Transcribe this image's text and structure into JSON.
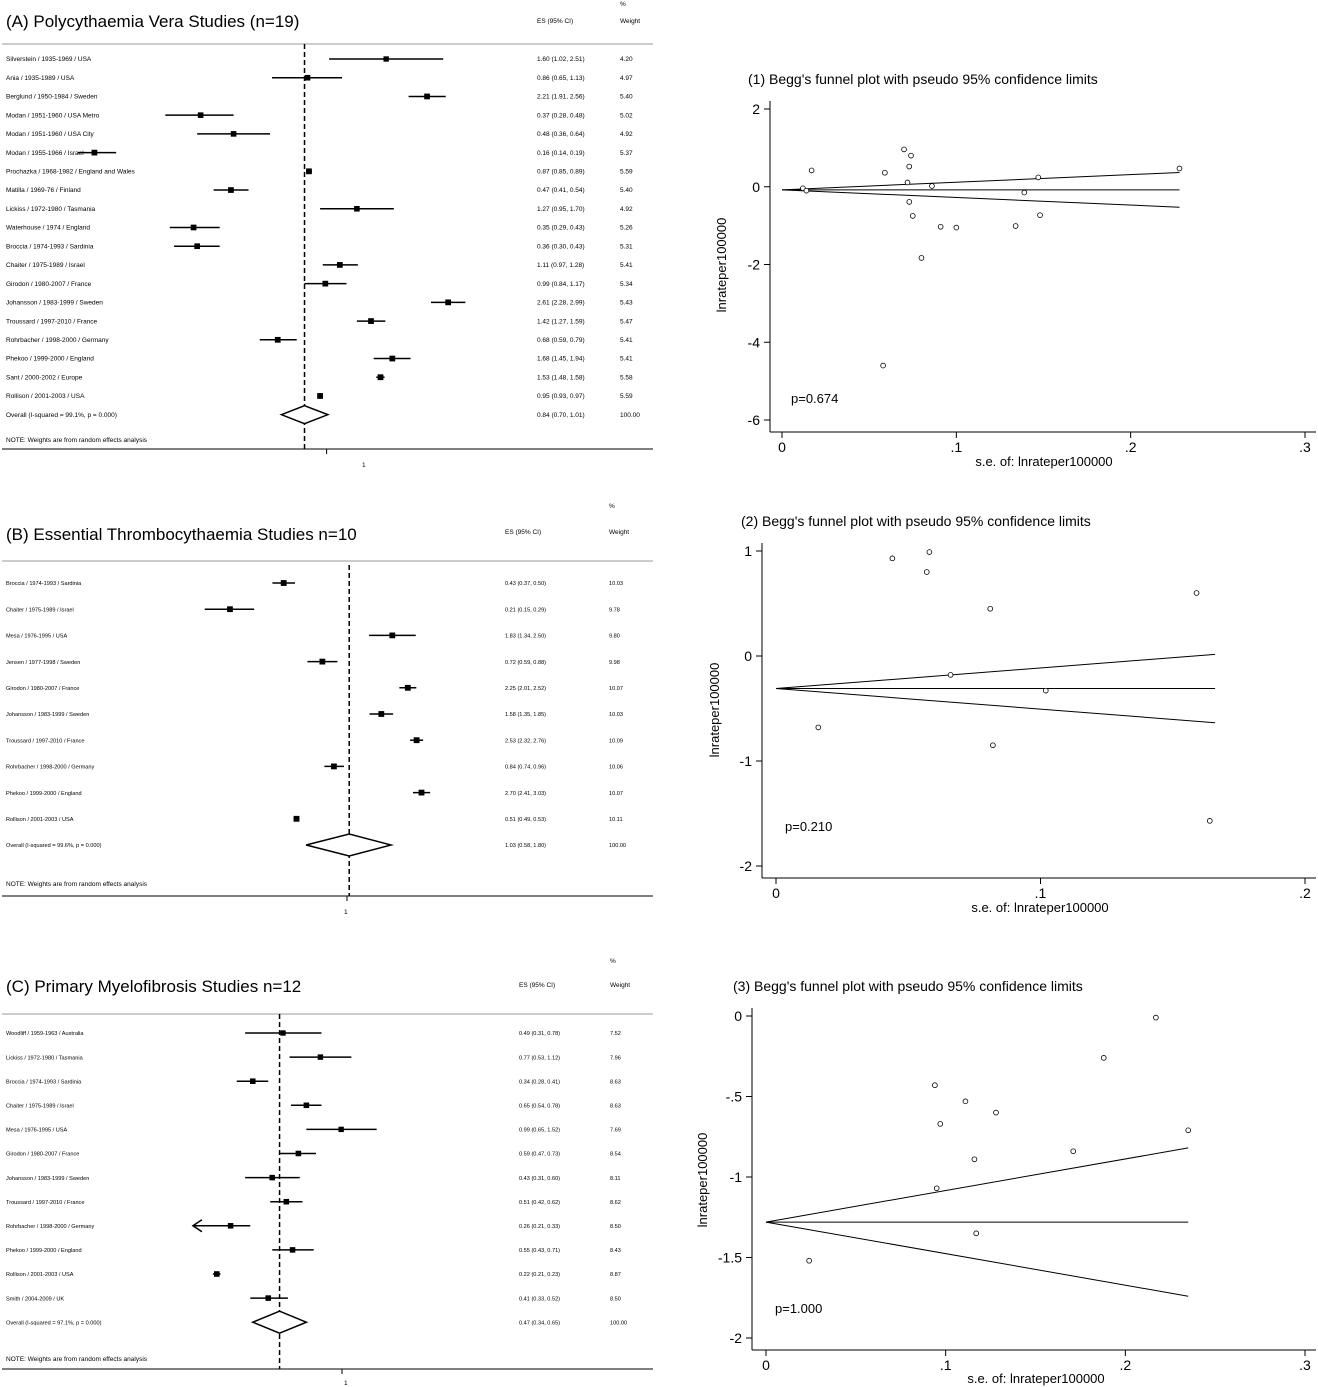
{
  "panels": [
    {
      "title": "(A) Polycythaemia Vera Studies (n=19)",
      "es_header": "ES (95% CI)",
      "weight_header_1": "%",
      "weight_header_2": "Weight",
      "ref_label": "1",
      "note": "NOTE: Weights are from random effects analysis"
    },
    {
      "title": "(B) Essential Thrombocythaemia Studies n=10",
      "es_header": "ES (95% CI)",
      "weight_header_1": "%",
      "weight_header_2": "Weight",
      "ref_label": "1",
      "note": "NOTE: Weights are from random effects analysis"
    },
    {
      "title": "(C) Primary Myelofibrosis Studies n=12",
      "es_header": "ES (95% CI)",
      "weight_header_1": "%",
      "weight_header_2": "Weight",
      "ref_label": "1",
      "note": "NOTE: Weights are from random effects analysis"
    }
  ],
  "funnels": [
    {
      "title": "(1) Begg's funnel plot with pseudo 95% confidence limits",
      "pvalue": "p=0.674",
      "xlabel": "s.e. of: lnrateper100000",
      "ylabel": "lnrateper100000"
    },
    {
      "title": "(2) Begg's funnel plot with pseudo 95% confidence limits",
      "pvalue": "p=0.210",
      "xlabel": "s.e. of: lnrateper100000",
      "ylabel": "lnrateper100000"
    },
    {
      "title": "(3) Begg's funnel plot with pseudo 95% confidence limits",
      "pvalue": "p=1.000",
      "xlabel": "s.e. of: lnrateper100000",
      "ylabel": "lnrateper100000"
    }
  ],
  "chart_data": [
    {
      "type": "forest",
      "title": "(A) Polycythaemia Vera Studies (n=19)",
      "columns": [
        "ES (95% CI)",
        "% Weight"
      ],
      "rows": [
        {
          "label": "Silverstein / 1935-1969 / USA",
          "es": 1.6,
          "lo": 1.02,
          "hi": 2.51,
          "ci_text": "1.60 (1.02, 2.51)",
          "weight": "4.20"
        },
        {
          "label": "Ania / 1935-1989 / USA",
          "es": 0.86,
          "lo": 0.65,
          "hi": 1.13,
          "ci_text": "0.86 (0.65, 1.13)",
          "weight": "4.97"
        },
        {
          "label": "Berglund / 1950-1984 / Sweden",
          "es": 2.21,
          "lo": 1.91,
          "hi": 2.56,
          "ci_text": "2.21 (1.91, 2.56)",
          "weight": "5.40"
        },
        {
          "label": "Modan / 1951-1960 / USA Metro",
          "es": 0.37,
          "lo": 0.28,
          "hi": 0.48,
          "ci_text": "0.37 (0.28, 0.48)",
          "weight": "5.02"
        },
        {
          "label": "Modan / 1951-1960 / USA City",
          "es": 0.48,
          "lo": 0.36,
          "hi": 0.64,
          "ci_text": "0.48 (0.36, 0.64)",
          "weight": "4.92"
        },
        {
          "label": "Modan / 1955-1966 / Israel",
          "es": 0.16,
          "lo": 0.14,
          "hi": 0.19,
          "ci_text": "0.16 (0.14, 0.19)",
          "weight": "5.37"
        },
        {
          "label": "Prochazka / 1968-1982 / England and Wales",
          "es": 0.87,
          "lo": 0.85,
          "hi": 0.89,
          "ci_text": "0.87 (0.85, 0.89)",
          "weight": "5.59"
        },
        {
          "label": "Matilla / 1969-76 / Finland",
          "es": 0.47,
          "lo": 0.41,
          "hi": 0.54,
          "ci_text": "0.47 (0.41, 0.54)",
          "weight": "5.40"
        },
        {
          "label": "Lickiss / 1972-1980 / Tasmania",
          "es": 1.27,
          "lo": 0.95,
          "hi": 1.7,
          "ci_text": "1.27 (0.95, 1.70)",
          "weight": "4.92"
        },
        {
          "label": "Waterhouse / 1974 / England",
          "es": 0.35,
          "lo": 0.29,
          "hi": 0.43,
          "ci_text": "0.35 (0.29, 0.43)",
          "weight": "5.26"
        },
        {
          "label": "Broccia / 1974-1993 / Sardinia",
          "es": 0.36,
          "lo": 0.3,
          "hi": 0.43,
          "ci_text": "0.36 (0.30, 0.43)",
          "weight": "5.31"
        },
        {
          "label": "Chaiter / 1975-1989 / Israel",
          "es": 1.11,
          "lo": 0.97,
          "hi": 1.28,
          "ci_text": "1.11 (0.97, 1.28)",
          "weight": "5.41"
        },
        {
          "label": "Girodon / 1980-2007 / France",
          "es": 0.99,
          "lo": 0.84,
          "hi": 1.17,
          "ci_text": "0.99 (0.84, 1.17)",
          "weight": "5.34"
        },
        {
          "label": "Johansson / 1983-1999 / Sweden",
          "es": 2.61,
          "lo": 2.28,
          "hi": 2.99,
          "ci_text": "2.61 (2.28, 2.99)",
          "weight": "5.43"
        },
        {
          "label": "Troussard / 1997-2010 / France",
          "es": 1.42,
          "lo": 1.27,
          "hi": 1.59,
          "ci_text": "1.42 (1.27, 1.59)",
          "weight": "5.47"
        },
        {
          "label": "Rohrbacher / 1998-2000 / Germany",
          "es": 0.68,
          "lo": 0.59,
          "hi": 0.79,
          "ci_text": "0.68 (0.59, 0.79)",
          "weight": "5.41"
        },
        {
          "label": "Phekoo / 1999-2000 / England",
          "es": 1.68,
          "lo": 1.45,
          "hi": 1.94,
          "ci_text": "1.68 (1.45, 1.94)",
          "weight": "5.41"
        },
        {
          "label": "Sant / 2000-2002 / Europe",
          "es": 1.53,
          "lo": 1.48,
          "hi": 1.58,
          "ci_text": "1.53 (1.48, 1.58)",
          "weight": "5.58"
        },
        {
          "label": "Rollison / 2001-2003 / USA",
          "es": 0.95,
          "lo": 0.93,
          "hi": 0.97,
          "ci_text": "0.95 (0.93, 0.97)",
          "weight": "5.59"
        }
      ],
      "overall": {
        "label": "Overall  (I-squared = 99.1%, p = 0.000)",
        "es": 0.84,
        "lo": 0.7,
        "hi": 1.01,
        "ci_text": "0.84 (0.70, 1.01)",
        "weight": "100.00"
      },
      "ref": 1
    },
    {
      "type": "forest",
      "title": "(B) Essential Thrombocythaemia Studies n=10",
      "columns": [
        "ES (95% CI)",
        "% Weight"
      ],
      "rows": [
        {
          "label": "Broccia / 1974-1993 / Sardinia",
          "es": 0.43,
          "lo": 0.37,
          "hi": 0.5,
          "ci_text": "0.43 (0.37, 0.50)",
          "weight": "10.03"
        },
        {
          "label": "Chaiter / 1975-1989 / Israel",
          "es": 0.21,
          "lo": 0.15,
          "hi": 0.29,
          "ci_text": "0.21 (0.15, 0.29)",
          "weight": "9.78"
        },
        {
          "label": "Mesa / 1976-1995 / USA",
          "es": 1.83,
          "lo": 1.34,
          "hi": 2.5,
          "ci_text": "1.83 (1.34, 2.50)",
          "weight": "9.80"
        },
        {
          "label": "Jensen / 1977-1998 / Sweden",
          "es": 0.72,
          "lo": 0.59,
          "hi": 0.88,
          "ci_text": "0.72 (0.59, 0.88)",
          "weight": "9.98"
        },
        {
          "label": "Girodon / 1980-2007 / France",
          "es": 2.25,
          "lo": 2.01,
          "hi": 2.52,
          "ci_text": "2.25 (2.01, 2.52)",
          "weight": "10.07"
        },
        {
          "label": "Johansson / 1983-1999 / Sweden",
          "es": 1.58,
          "lo": 1.35,
          "hi": 1.85,
          "ci_text": "1.58 (1.35, 1.85)",
          "weight": "10.03"
        },
        {
          "label": "Troussard / 1997-2010 / France",
          "es": 2.53,
          "lo": 2.32,
          "hi": 2.76,
          "ci_text": "2.53 (2.32, 2.76)",
          "weight": "10.09"
        },
        {
          "label": "Rohrbacher / 1998-2000 / Germany",
          "es": 0.84,
          "lo": 0.74,
          "hi": 0.96,
          "ci_text": "0.84 (0.74, 0.96)",
          "weight": "10.06"
        },
        {
          "label": "Phekoo / 1999-2000 / England",
          "es": 2.7,
          "lo": 2.41,
          "hi": 3.03,
          "ci_text": "2.70 (2.41, 3.03)",
          "weight": "10.07"
        },
        {
          "label": "Rollison / 2001-2003 / USA",
          "es": 0.51,
          "lo": 0.49,
          "hi": 0.53,
          "ci_text": "0.51 (0.49, 0.53)",
          "weight": "10.11"
        }
      ],
      "overall": {
        "label": "Overall  (I-squared = 99.6%, p = 0.000)",
        "es": 1.03,
        "lo": 0.58,
        "hi": 1.8,
        "ci_text": "1.03 (0.58, 1.80)",
        "weight": "100.00"
      },
      "ref": 1
    },
    {
      "type": "forest",
      "title": "(C) Primary Myelofibrosis Studies n=12",
      "columns": [
        "ES (95% CI)",
        "% Weight"
      ],
      "rows": [
        {
          "label": "Woodliff / 1959-1963 / Australia",
          "es": 0.49,
          "lo": 0.31,
          "hi": 0.78,
          "ci_text": "0.49 (0.31, 0.78)",
          "weight": "7.52"
        },
        {
          "label": "Lickiss / 1972-1980 / Tasmania",
          "es": 0.77,
          "lo": 0.53,
          "hi": 1.12,
          "ci_text": "0.77 (0.53, 1.12)",
          "weight": "7.96"
        },
        {
          "label": "Broccia / 1974-1993 / Sardinia",
          "es": 0.34,
          "lo": 0.28,
          "hi": 0.41,
          "ci_text": "0.34 (0.28, 0.41)",
          "weight": "8.63"
        },
        {
          "label": "Chaiter / 1975-1989 / Israel",
          "es": 0.65,
          "lo": 0.54,
          "hi": 0.78,
          "ci_text": "0.65 (0.54, 0.78)",
          "weight": "8.63"
        },
        {
          "label": "Mesa / 1976-1995 / USA",
          "es": 0.99,
          "lo": 0.65,
          "hi": 1.52,
          "ci_text": "0.99 (0.65, 1.52)",
          "weight": "7.69"
        },
        {
          "label": "Girodon / 1980-2007 / France",
          "es": 0.59,
          "lo": 0.47,
          "hi": 0.73,
          "ci_text": "0.59 (0.47, 0.73)",
          "weight": "8.54"
        },
        {
          "label": "Johansson / 1983-1999 / Sweden",
          "es": 0.43,
          "lo": 0.31,
          "hi": 0.6,
          "ci_text": "0.43 (0.31, 0.60)",
          "weight": "8.11"
        },
        {
          "label": "Troussard / 1997-2010 / France",
          "es": 0.51,
          "lo": 0.42,
          "hi": 0.62,
          "ci_text": "0.51 (0.42, 0.62)",
          "weight": "8.62"
        },
        {
          "label": "Rohrbacher / 1998-2000 / Germany",
          "es": 0.26,
          "lo": 0.21,
          "hi": 0.33,
          "ci_text": "0.26 (0.21, 0.33)",
          "weight": "8.50",
          "arrow_left": true
        },
        {
          "label": "Phekoo / 1999-2000 / England",
          "es": 0.55,
          "lo": 0.43,
          "hi": 0.71,
          "ci_text": "0.55 (0.43, 0.71)",
          "weight": "8.43"
        },
        {
          "label": "Rollison / 2001-2003 / USA",
          "es": 0.22,
          "lo": 0.21,
          "hi": 0.23,
          "ci_text": "0.22 (0.21, 0.23)",
          "weight": "8.87"
        },
        {
          "label": "Smith / 2004-2009 / UK",
          "es": 0.41,
          "lo": 0.33,
          "hi": 0.52,
          "ci_text": "0.41 (0.33, 0.52)",
          "weight": "8.50"
        }
      ],
      "overall": {
        "label": "Overall  (I-squared = 97.1%, p = 0.000)",
        "es": 0.47,
        "lo": 0.34,
        "hi": 0.65,
        "ci_text": "0.47 (0.34, 0.65)",
        "weight": "100.00"
      },
      "ref": 1
    },
    {
      "type": "scatter",
      "title": "(1) Begg's funnel plot with pseudo 95% confidence limits",
      "xlabel": "s.e. of: lnrateper100000",
      "ylabel": "lnrateper100000",
      "xlim": [
        0,
        0.3
      ],
      "ylim": [
        -6,
        2
      ],
      "xticks": [
        {
          "v": 0,
          "t": "0"
        },
        {
          "v": 0.1,
          "t": ".1"
        },
        {
          "v": 0.2,
          "t": ".2"
        },
        {
          "v": 0.3,
          "t": ".3"
        }
      ],
      "yticks": [
        {
          "v": 2,
          "t": "2"
        },
        {
          "v": 0,
          "t": "0"
        },
        {
          "v": -2,
          "t": "-2"
        },
        {
          "v": -4,
          "t": "-4"
        },
        {
          "v": -6,
          "t": "-6"
        }
      ],
      "pooled": -0.08,
      "funnel_xmax": 0.228,
      "points": [
        [
          0.012,
          -0.04
        ],
        [
          0.014,
          -0.1
        ],
        [
          0.017,
          0.42
        ],
        [
          0.058,
          -4.6
        ],
        [
          0.059,
          0.36
        ],
        [
          0.07,
          0.96
        ],
        [
          0.072,
          0.11
        ],
        [
          0.073,
          -0.39
        ],
        [
          0.073,
          0.52
        ],
        [
          0.074,
          0.8
        ],
        [
          0.075,
          -0.75
        ],
        [
          0.08,
          -1.83
        ],
        [
          0.086,
          0.02
        ],
        [
          0.091,
          -1.03
        ],
        [
          0.1,
          -1.05
        ],
        [
          0.134,
          -1.01
        ],
        [
          0.139,
          -0.15
        ],
        [
          0.147,
          0.24
        ],
        [
          0.148,
          -0.73
        ],
        [
          0.228,
          0.47
        ]
      ],
      "pvalue": "p=0.674"
    },
    {
      "type": "scatter",
      "title": "(2) Begg's funnel plot with pseudo 95% confidence limits",
      "xlabel": "s.e. of: lnrateper100000",
      "ylabel": "lnrateper100000",
      "xlim": [
        0,
        0.2
      ],
      "ylim": [
        -2,
        1
      ],
      "xticks": [
        {
          "v": 0,
          "t": "0"
        },
        {
          "v": 0.1,
          "t": ".1"
        },
        {
          "v": 0.2,
          "t": ".2"
        }
      ],
      "yticks": [
        {
          "v": 1,
          "t": "1"
        },
        {
          "v": 0,
          "t": "0"
        },
        {
          "v": -1,
          "t": "-1"
        },
        {
          "v": -2,
          "t": "-2"
        }
      ],
      "pooled": -0.31,
      "funnel_xmax": 0.166,
      "points": [
        [
          0.016,
          -0.68
        ],
        [
          0.044,
          0.93
        ],
        [
          0.057,
          0.8
        ],
        [
          0.058,
          0.99
        ],
        [
          0.066,
          -0.18
        ],
        [
          0.081,
          0.45
        ],
        [
          0.082,
          -0.85
        ],
        [
          0.102,
          -0.33
        ],
        [
          0.159,
          0.6
        ],
        [
          0.164,
          -1.57
        ]
      ],
      "pvalue": "p=0.210"
    },
    {
      "type": "scatter",
      "title": "(3) Begg's funnel plot with pseudo 95% confidence limits",
      "xlabel": "s.e. of: lnrateper100000",
      "ylabel": "lnrateper100000",
      "xlim": [
        0,
        0.3
      ],
      "ylim": [
        -2,
        0
      ],
      "xticks": [
        {
          "v": 0,
          "t": "0"
        },
        {
          "v": 0.1,
          "t": ".1"
        },
        {
          "v": 0.2,
          "t": ".2"
        },
        {
          "v": 0.3,
          "t": ".3"
        }
      ],
      "yticks": [
        {
          "v": 0,
          "t": "0"
        },
        {
          "v": -0.5,
          "t": "-.5"
        },
        {
          "v": -1,
          "t": "-1"
        },
        {
          "v": -1.5,
          "t": "-1.5"
        },
        {
          "v": -2,
          "t": "-2"
        }
      ],
      "pooled": -1.28,
      "funnel_xmax": 0.235,
      "points": [
        [
          0.024,
          -1.52
        ],
        [
          0.094,
          -0.43
        ],
        [
          0.095,
          -1.07
        ],
        [
          0.097,
          -0.67
        ],
        [
          0.111,
          -0.53
        ],
        [
          0.116,
          -0.89
        ],
        [
          0.117,
          -1.35
        ],
        [
          0.128,
          -0.6
        ],
        [
          0.171,
          -0.84
        ],
        [
          0.188,
          -0.26
        ],
        [
          0.217,
          -0.01
        ],
        [
          0.235,
          -0.71
        ]
      ],
      "pvalue": "p=1.000"
    }
  ]
}
